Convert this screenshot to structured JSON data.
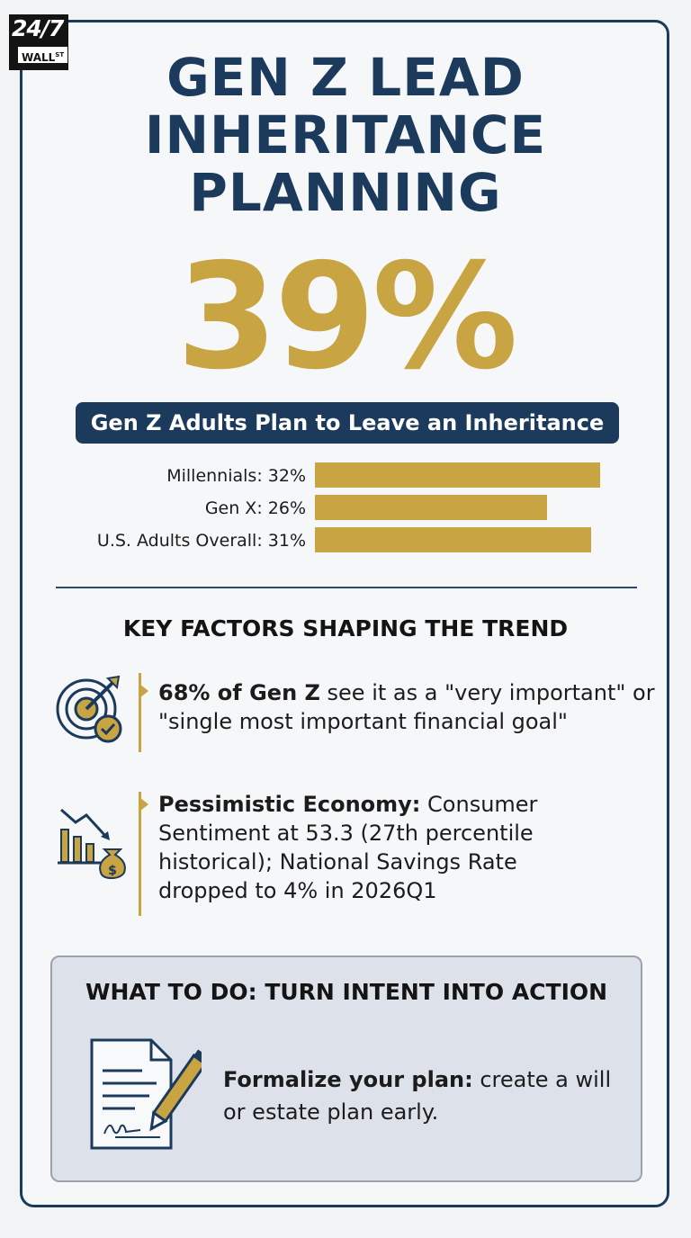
{
  "logo": {
    "line1": "24/7",
    "line2": "WALL",
    "sup": "ST"
  },
  "title_lines": [
    "GEN Z LEAD",
    "INHERITANCE",
    "PLANNING"
  ],
  "headline_stat": "39%",
  "headline_caption": "Gen Z Adults Plan to Leave an Inheritance",
  "chart_data": {
    "type": "bar",
    "categories": [
      "Millennials",
      "Gen X",
      "U.S. Adults Overall"
    ],
    "values": [
      32,
      26,
      31
    ],
    "labels": [
      "Millennials: 32%",
      "Gen X: 26%",
      "U.S. Adults Overall: 31%"
    ],
    "xlim": [
      0,
      32
    ]
  },
  "factors": {
    "heading": "KEY FACTORS SHAPING THE TREND",
    "item1": {
      "bold": "68% of Gen Z",
      "rest": " see it as a \"very important\" or \"single most important financial goal\"",
      "icon": "target-icon"
    },
    "item2": {
      "bold": "Pessimistic Economy:",
      "rest": " Consumer Sentiment at 53.3 (27th percentile historical); National Savings Rate dropped to 4% in 2026Q1",
      "icon": "economy-decline-icon"
    }
  },
  "action": {
    "heading": "WHAT TO DO: TURN INTENT INTO ACTION",
    "bold": "Formalize your plan:",
    "rest": " create a will or estate plan early.",
    "icon": "document-pen-icon"
  },
  "colors": {
    "navy": "#1b3a5c",
    "gold": "#c9a443"
  }
}
